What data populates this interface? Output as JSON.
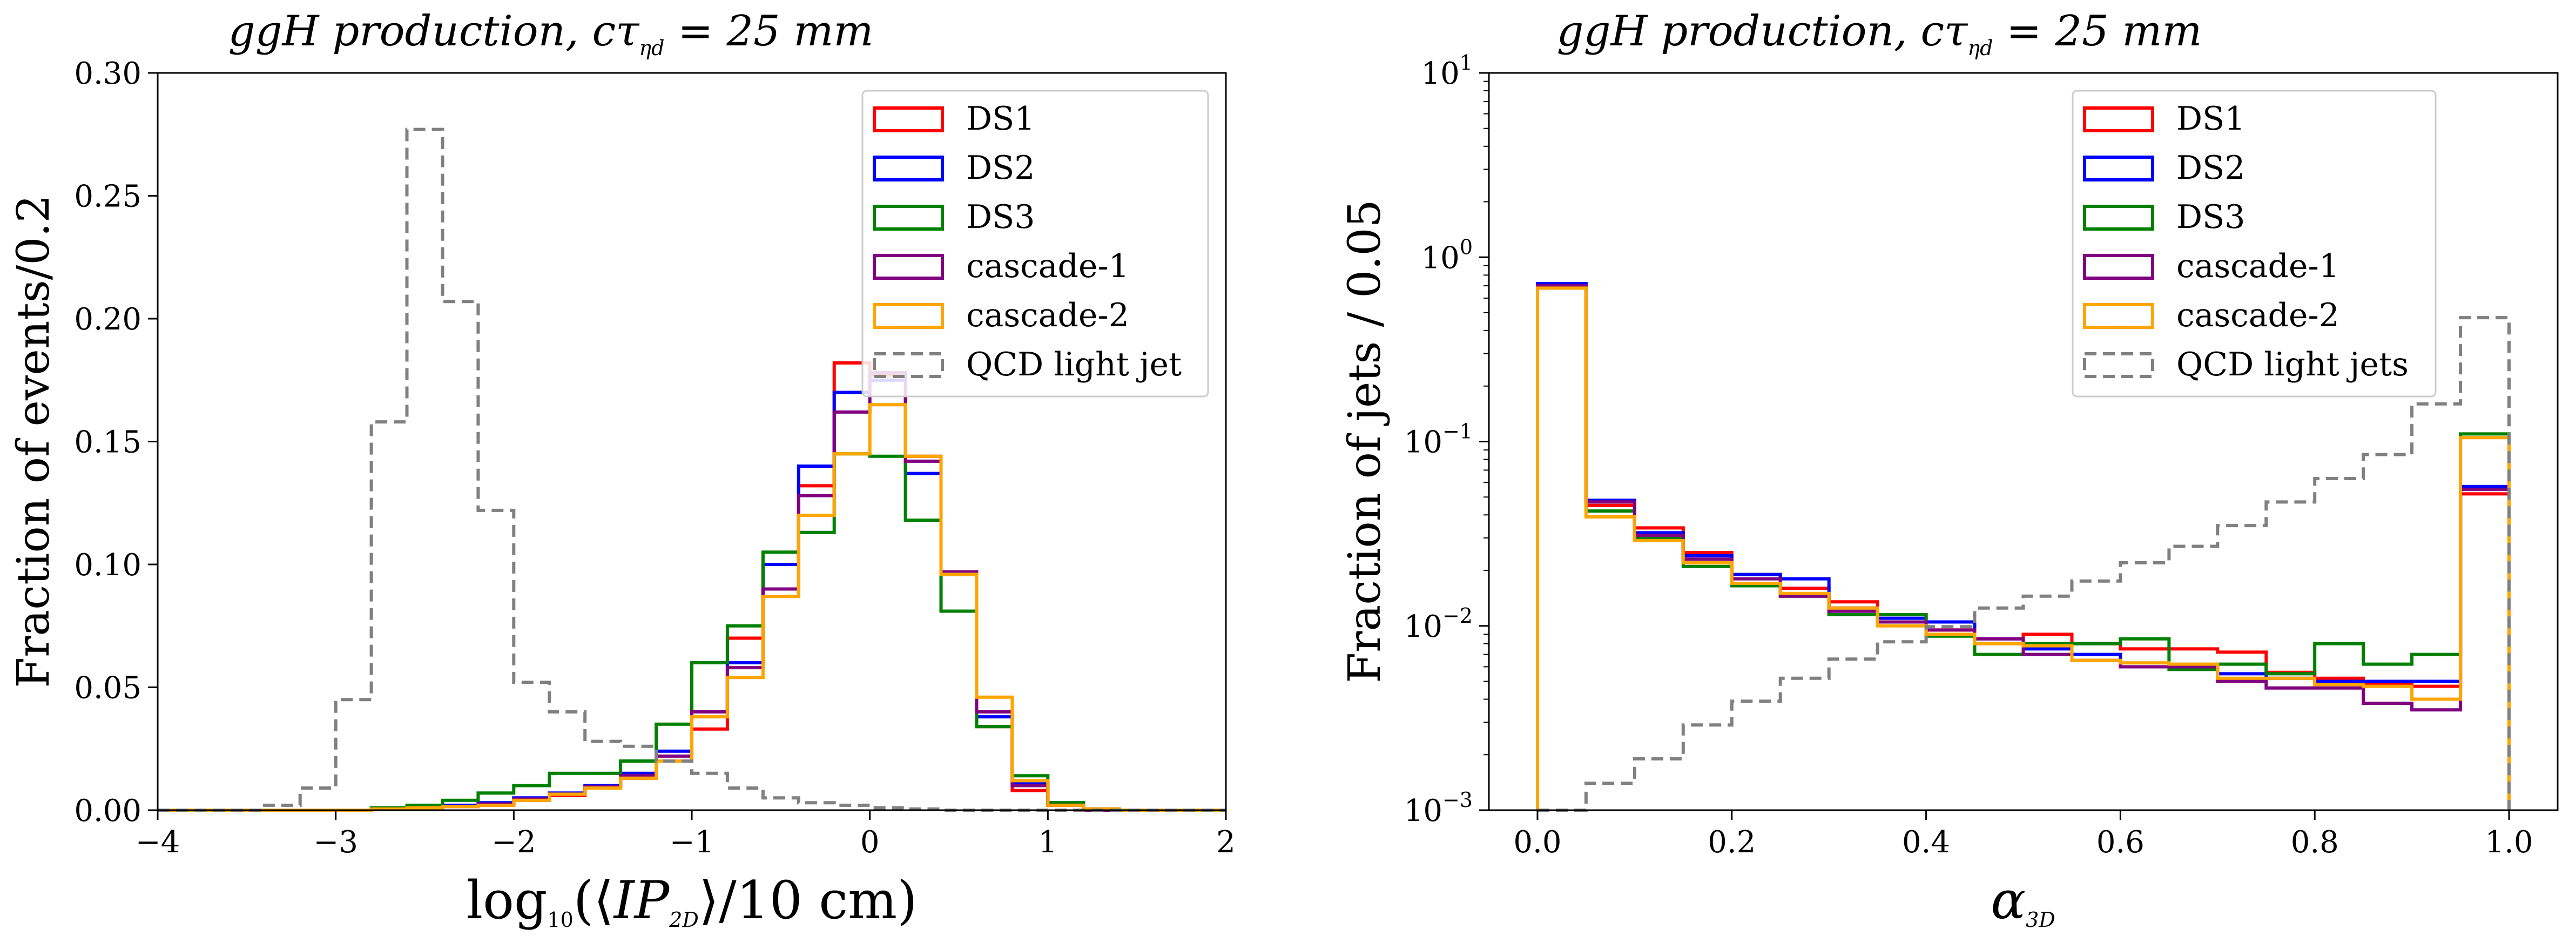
{
  "chart_data": [
    {
      "type": "step-histogram",
      "title": "ggH production, cτηd = 25 mm",
      "title_parts": {
        "prefix": "ggH production, cτ",
        "sub": "ηd",
        "suffix": " = 25 mm"
      },
      "xlabel": "log10(⟨IP2D⟩/10 cm)",
      "xlabel_parts": {
        "a": "log",
        "a_sub": "10",
        "b": "(⟨",
        "c": "IP",
        "c_sub": "2D",
        "d": "⟩/10 cm)"
      },
      "ylabel": "Fraction of events/0.2",
      "xlim": [
        -4,
        2
      ],
      "ylim": [
        0,
        0.3
      ],
      "xticks": [
        -4,
        -3,
        -2,
        -1,
        0,
        1,
        2
      ],
      "xtick_labels": [
        "−4",
        "−3",
        "−2",
        "−1",
        "0",
        "1",
        "2"
      ],
      "yticks": [
        0,
        0.05,
        0.1,
        0.15,
        0.2,
        0.25,
        0.3
      ],
      "ytick_labels": [
        "0.00",
        "0.05",
        "0.10",
        "0.15",
        "0.20",
        "0.25",
        "0.30"
      ],
      "bin_edges": [
        -4.0,
        -3.8,
        -3.6,
        -3.4,
        -3.2,
        -3.0,
        -2.8,
        -2.6,
        -2.4,
        -2.2,
        -2.0,
        -1.8,
        -1.6,
        -1.4,
        -1.2,
        -1.0,
        -0.8,
        -0.6,
        -0.4,
        -0.2,
        0.0,
        0.2,
        0.4,
        0.6,
        0.8,
        1.0,
        1.2,
        1.4,
        1.6,
        1.8,
        2.0
      ],
      "legend_position": "upper right",
      "series": [
        {
          "name": "DS1",
          "color": "#ff0000",
          "dashed": false,
          "values": [
            0,
            0,
            0,
            0,
            0,
            0,
            0.0005,
            0.001,
            0.0015,
            0.002,
            0.004,
            0.006,
            0.009,
            0.013,
            0.02,
            0.033,
            0.07,
            0.1,
            0.132,
            0.182,
            0.177,
            0.144,
            0.096,
            0.034,
            0.008,
            0.002,
            0,
            0,
            0,
            0
          ]
        },
        {
          "name": "DS2",
          "color": "#0000ff",
          "dashed": false,
          "values": [
            0,
            0,
            0,
            0,
            0,
            0,
            0.0005,
            0.001,
            0.002,
            0.003,
            0.005,
            0.007,
            0.01,
            0.015,
            0.024,
            0.04,
            0.06,
            0.1,
            0.14,
            0.17,
            0.175,
            0.137,
            0.096,
            0.038,
            0.011,
            0.003,
            0.0005,
            0,
            0,
            0
          ]
        },
        {
          "name": "DS3",
          "color": "#008000",
          "dashed": false,
          "values": [
            0,
            0,
            0,
            0,
            0,
            0,
            0.001,
            0.002,
            0.004,
            0.007,
            0.01,
            0.015,
            0.015,
            0.02,
            0.035,
            0.06,
            0.075,
            0.105,
            0.113,
            0.145,
            0.144,
            0.118,
            0.081,
            0.034,
            0.014,
            0.003,
            0.0005,
            0,
            0,
            0
          ]
        },
        {
          "name": "cascade-1",
          "color": "#800080",
          "dashed": false,
          "values": [
            0,
            0,
            0,
            0,
            0,
            0,
            0.0005,
            0.001,
            0.0015,
            0.0025,
            0.0045,
            0.0065,
            0.0095,
            0.014,
            0.022,
            0.04,
            0.058,
            0.09,
            0.128,
            0.162,
            0.178,
            0.142,
            0.097,
            0.04,
            0.01,
            0.002,
            0,
            0,
            0,
            0
          ]
        },
        {
          "name": "cascade-2",
          "color": "#ffa500",
          "dashed": false,
          "values": [
            0,
            0,
            0,
            0,
            0,
            0,
            0.0005,
            0.001,
            0.0015,
            0.002,
            0.004,
            0.0065,
            0.009,
            0.013,
            0.02,
            0.038,
            0.054,
            0.087,
            0.12,
            0.145,
            0.165,
            0.144,
            0.096,
            0.046,
            0.012,
            0.002,
            0.0005,
            0,
            0,
            0
          ]
        },
        {
          "name": "QCD light jet",
          "color": "#808080",
          "dashed": true,
          "values": [
            0,
            0,
            0,
            0.002,
            0.009,
            0.045,
            0.158,
            0.277,
            0.207,
            0.122,
            0.052,
            0.04,
            0.028,
            0.026,
            0.02,
            0.015,
            0.009,
            0.005,
            0.003,
            0.002,
            0.001,
            0.0005,
            0,
            0,
            0,
            0,
            0,
            0,
            0,
            0
          ]
        }
      ]
    },
    {
      "type": "step-histogram",
      "title": "ggH production, cτηd = 25 mm",
      "title_parts": {
        "prefix": "ggH production, cτ",
        "sub": "ηd",
        "suffix": " = 25 mm"
      },
      "xlabel": "α3D",
      "xlabel_parts": {
        "a": "α",
        "a_sub": "3D"
      },
      "ylabel": "Fraction of jets / 0.05",
      "yscale": "log",
      "xlim": [
        -0.05,
        1.05
      ],
      "ylim": [
        0.001,
        10
      ],
      "xticks": [
        0.0,
        0.2,
        0.4,
        0.6,
        0.8,
        1.0
      ],
      "xtick_labels": [
        "0.0",
        "0.2",
        "0.4",
        "0.6",
        "0.8",
        "1.0"
      ],
      "yticks": [
        0.001,
        0.01,
        0.1,
        1,
        10
      ],
      "ytick_labels": [
        {
          "base": "10",
          "exp": "−3"
        },
        {
          "base": "10",
          "exp": "−2"
        },
        {
          "base": "10",
          "exp": "−1"
        },
        {
          "base": "10",
          "exp": "0"
        },
        {
          "base": "10",
          "exp": "1"
        }
      ],
      "bin_edges": [
        0.0,
        0.05,
        0.1,
        0.15,
        0.2,
        0.25,
        0.3,
        0.35,
        0.4,
        0.45,
        0.5,
        0.55,
        0.6,
        0.65,
        0.7,
        0.75,
        0.8,
        0.85,
        0.9,
        0.95,
        1.0
      ],
      "legend_position": "upper center",
      "series": [
        {
          "name": "DS1",
          "color": "#ff0000",
          "dashed": false,
          "values": [
            0.7,
            0.045,
            0.034,
            0.025,
            0.019,
            0.016,
            0.0135,
            0.0115,
            0.0095,
            0.008,
            0.009,
            0.008,
            0.0075,
            0.0075,
            0.0072,
            0.0056,
            0.0052,
            0.0048,
            0.0047,
            0.052
          ]
        },
        {
          "name": "DS2",
          "color": "#0000ff",
          "dashed": false,
          "values": [
            0.72,
            0.048,
            0.032,
            0.024,
            0.019,
            0.018,
            0.0125,
            0.011,
            0.0105,
            0.0085,
            0.0075,
            0.007,
            0.006,
            0.006,
            0.0055,
            0.0052,
            0.005,
            0.005,
            0.005,
            0.057
          ]
        },
        {
          "name": "DS3",
          "color": "#008000",
          "dashed": false,
          "values": [
            0.68,
            0.042,
            0.03,
            0.021,
            0.0165,
            0.0145,
            0.0115,
            0.0115,
            0.0088,
            0.007,
            0.008,
            0.008,
            0.0085,
            0.0058,
            0.0062,
            0.0055,
            0.008,
            0.0062,
            0.007,
            0.11
          ]
        },
        {
          "name": "cascade-1",
          "color": "#800080",
          "dashed": false,
          "values": [
            0.7,
            0.047,
            0.031,
            0.023,
            0.018,
            0.0145,
            0.012,
            0.0105,
            0.0095,
            0.0085,
            0.007,
            0.0065,
            0.006,
            0.006,
            0.005,
            0.0046,
            0.0046,
            0.0038,
            0.0035,
            0.055
          ]
        },
        {
          "name": "cascade-2",
          "color": "#ffa500",
          "dashed": false,
          "values": [
            0.68,
            0.039,
            0.029,
            0.022,
            0.017,
            0.015,
            0.0125,
            0.01,
            0.009,
            0.008,
            0.0078,
            0.0065,
            0.0063,
            0.0062,
            0.0052,
            0.0052,
            0.0048,
            0.0047,
            0.004,
            0.105
          ]
        },
        {
          "name": "QCD light jets",
          "color": "#808080",
          "dashed": true,
          "values": [
            0,
            0.0014,
            0.0019,
            0.0029,
            0.0039,
            0.0052,
            0.0066,
            0.0082,
            0.0099,
            0.0125,
            0.0145,
            0.0175,
            0.022,
            0.027,
            0.035,
            0.047,
            0.063,
            0.085,
            0.16,
            0.47
          ]
        }
      ]
    }
  ]
}
